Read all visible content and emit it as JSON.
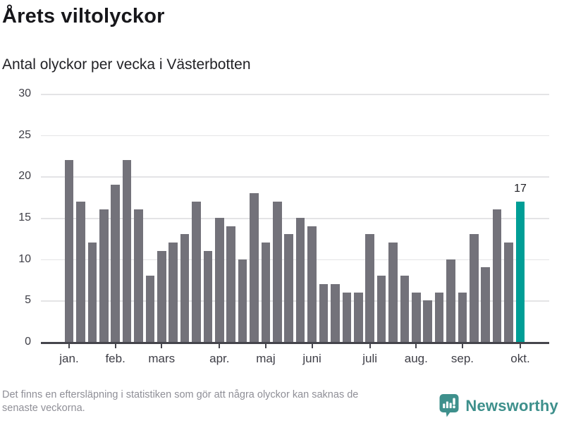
{
  "header": {
    "title": "Årets viltolyckor",
    "subtitle": "Antal olyckor per vecka i Västerbotten"
  },
  "chart_data": {
    "type": "bar",
    "title": "Årets viltolyckor",
    "subtitle": "Antal olyckor per vecka i Västerbotten",
    "xlabel": "",
    "ylabel": "Antal olyckor per vecka",
    "x_unit": "vecka",
    "ylim": [
      0,
      30
    ],
    "yticks": [
      0,
      5,
      10,
      15,
      20,
      25,
      30
    ],
    "grid": true,
    "values": [
      22,
      17,
      12,
      16,
      19,
      22,
      16,
      8,
      11,
      12,
      13,
      17,
      11,
      15,
      14,
      10,
      18,
      12,
      17,
      13,
      15,
      14,
      7,
      7,
      6,
      6,
      13,
      8,
      12,
      8,
      6,
      5,
      6,
      10,
      6,
      13,
      9,
      16,
      12,
      17
    ],
    "month_ticks": [
      {
        "label": "jan.",
        "week_index": 0
      },
      {
        "label": "feb.",
        "week_index": 4
      },
      {
        "label": "mars",
        "week_index": 8
      },
      {
        "label": "apr.",
        "week_index": 13
      },
      {
        "label": "maj",
        "week_index": 17
      },
      {
        "label": "juni",
        "week_index": 21
      },
      {
        "label": "juli",
        "week_index": 26
      },
      {
        "label": "aug.",
        "week_index": 30
      },
      {
        "label": "sep.",
        "week_index": 34
      },
      {
        "label": "okt.",
        "week_index": 39
      }
    ],
    "highlight_index": 39,
    "annotation": {
      "text": "17",
      "week_index": 39
    },
    "colors": {
      "bar": "#73727a",
      "highlight": "#009e96",
      "gridline": "#e4e4e6",
      "axis": "#45454c",
      "axis_label": "#3e3e46"
    },
    "legend": null
  },
  "footer": {
    "note_lines": [
      "Det finns en eftersläpning i statistiken som gör att några olyckor kan saknas de",
      "senaste veckorna."
    ],
    "brand": "Newsworthy",
    "logo_icon": "speech-bubble-bar-chart-icon",
    "brand_color": "#3e908c"
  }
}
